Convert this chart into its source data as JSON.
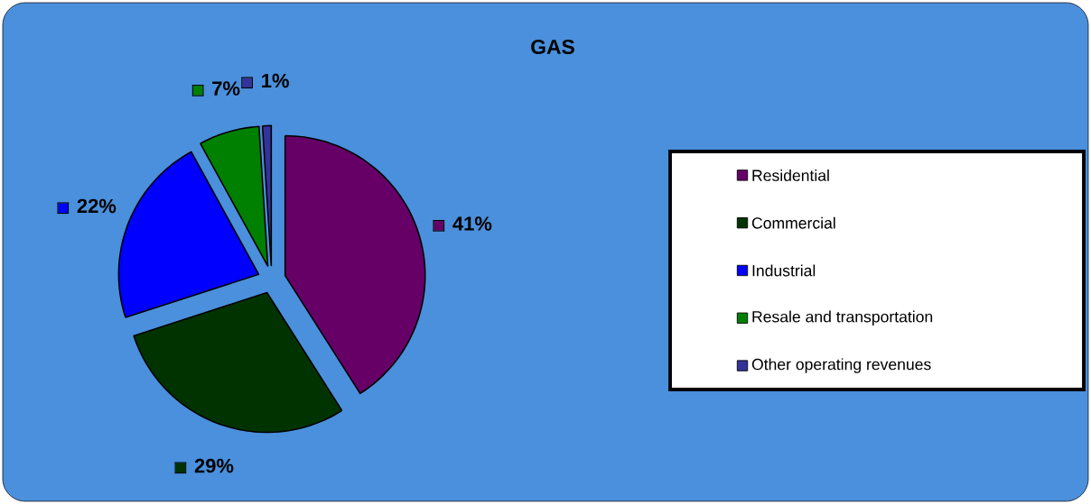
{
  "chart_data": {
    "type": "pie",
    "title": "GAS",
    "categories": [
      "Residential",
      "Commercial",
      "Industrial",
      "Resale and transportation",
      "Other operating revenues"
    ],
    "values": [
      41,
      29,
      22,
      7,
      1
    ],
    "value_labels": [
      "41%",
      "29%",
      "22%",
      "7%",
      "1%"
    ],
    "colors": [
      "#660066",
      "#003300",
      "#0000ff",
      "#008000",
      "#333399"
    ],
    "legend": "right"
  }
}
